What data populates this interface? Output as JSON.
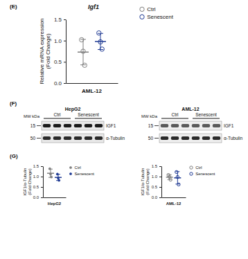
{
  "chart_data": [
    {
      "type": "dotplot",
      "title": "Igf1",
      "annotations": [
        "(E)"
      ],
      "xlabel": "AML-12",
      "ylabel": "Relative mRNA expression\n(Fold Change)",
      "ylim": [
        0,
        1.5
      ],
      "yticks": [
        {
          "value": 0,
          "label": "0.0"
        },
        {
          "value": 0.5,
          "label": "0.5"
        },
        {
          "value": 1,
          "label": "1.0"
        },
        {
          "value": 1.5,
          "label": "1.5"
        }
      ],
      "legend": "right",
      "marker": "circle-open",
      "series": [
        {
          "name": "Ctrl",
          "color": "#7f7f7f",
          "values": [
            1.02,
            0.75,
            0.42
          ],
          "mean": 0.73,
          "error": 0.3
        },
        {
          "name": "Senescent",
          "color": "#1f3a93",
          "values": [
            1.18,
            0.97,
            0.8
          ],
          "mean": 0.98,
          "error": 0.19
        }
      ]
    },
    {
      "type": "dotplot",
      "annotations": [
        "(G)"
      ],
      "xlabel": "HepG2",
      "ylabel": "IGF1/α-Tubulin\n(Fold Change)",
      "ylim": [
        0,
        1.5
      ],
      "yticks": [
        {
          "value": 0,
          "label": "0.0"
        },
        {
          "value": 0.5,
          "label": "0.5"
        },
        {
          "value": 1,
          "label": "1.0"
        },
        {
          "value": 1.5,
          "label": "1.5"
        }
      ],
      "legend": "right",
      "marker": "circle",
      "series": [
        {
          "name": "Ctrl",
          "color": "#7f7f7f",
          "values": [
            1.38,
            1.12,
            0.98
          ],
          "mean": 1.16,
          "error": 0.2
        },
        {
          "name": "Senescent",
          "color": "#1f3a93",
          "values": [
            1.12,
            0.93,
            0.82
          ],
          "mean": 0.96,
          "error": 0.15
        }
      ]
    },
    {
      "type": "dotplot",
      "xlabel": "AML-12",
      "ylabel": "IGF1/α-Tubulin\n(Fold Change)",
      "ylim": [
        0,
        1.5
      ],
      "yticks": [
        {
          "value": 0,
          "label": "0.0"
        },
        {
          "value": 0.5,
          "label": "0.5"
        },
        {
          "value": 1,
          "label": "1.0"
        },
        {
          "value": 1.5,
          "label": "1.5"
        }
      ],
      "legend": "right",
      "marker": "circle-open",
      "series": [
        {
          "name": "Ctrl",
          "color": "#7f7f7f",
          "values": [
            1.08,
            0.98,
            0.85
          ],
          "mean": 0.97,
          "error": 0.12
        },
        {
          "name": "Senescent",
          "color": "#1f3a93",
          "values": [
            1.22,
            0.98,
            0.62
          ],
          "mean": 0.94,
          "error": 0.3
        }
      ]
    }
  ],
  "blot_panel": {
    "label": "(F)",
    "blots": [
      {
        "title": "HepG2",
        "mw_label": "MW kDa",
        "groups": [
          "Ctrl",
          "Senescent"
        ],
        "markers": [
          15,
          50
        ],
        "rows": [
          "IGF1",
          "α-Tubulin"
        ]
      },
      {
        "title": "AML-12",
        "mw_label": "MW kDa",
        "groups": [
          "Ctrl",
          "Senescent"
        ],
        "markers": [
          15,
          50
        ],
        "rows": [
          "IGF1",
          "α-Tubulin"
        ]
      }
    ]
  }
}
